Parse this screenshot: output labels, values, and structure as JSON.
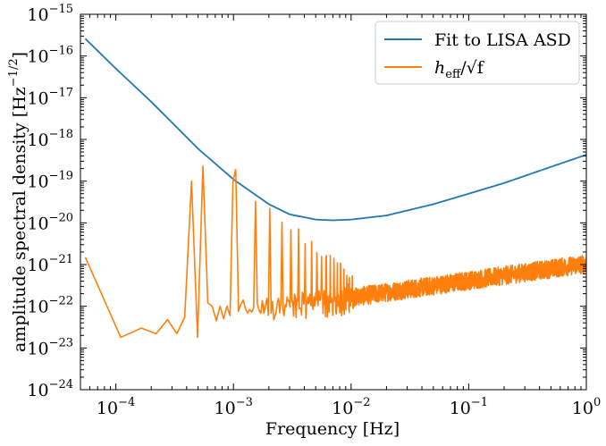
{
  "chart_data": {
    "type": "line",
    "scale": {
      "x": "log",
      "y": "log"
    },
    "xlabel": "Frequency [Hz]",
    "ylabel": "amplitude spectral density [Hz^-1/2]",
    "ylabel_prefix": "amplitude spectral density [Hz",
    "ylabel_exp": "−1/2",
    "ylabel_suffix": "]",
    "xlim": [
      5e-05,
      1.0
    ],
    "ylim": [
      1e-24,
      1e-15
    ],
    "x_ticks": [
      {
        "base": "10",
        "exp": "−4",
        "value": 0.0001
      },
      {
        "base": "10",
        "exp": "−3",
        "value": 0.001
      },
      {
        "base": "10",
        "exp": "−2",
        "value": 0.01
      },
      {
        "base": "10",
        "exp": "−1",
        "value": 0.1
      },
      {
        "base": "10",
        "exp": "0",
        "value": 1
      }
    ],
    "y_ticks": [
      {
        "base": "10",
        "exp": "−24",
        "value": 1e-24
      },
      {
        "base": "10",
        "exp": "−23",
        "value": 1e-23
      },
      {
        "base": "10",
        "exp": "−22",
        "value": 1e-22
      },
      {
        "base": "10",
        "exp": "−21",
        "value": 1e-21
      },
      {
        "base": "10",
        "exp": "−20",
        "value": 1e-20
      },
      {
        "base": "10",
        "exp": "−19",
        "value": 1e-19
      },
      {
        "base": "10",
        "exp": "−18",
        "value": 1e-18
      },
      {
        "base": "10",
        "exp": "−17",
        "value": 1e-17
      },
      {
        "base": "10",
        "exp": "−16",
        "value": 1e-16
      },
      {
        "base": "10",
        "exp": "−15",
        "value": 1e-15
      }
    ],
    "legend_position": "top-right",
    "series": [
      {
        "name": "Fit to LISA ASD",
        "color": "#1f77b4",
        "x": [
          5.5e-05,
          0.0001,
          0.0002,
          0.0005,
          0.001,
          0.002,
          0.003,
          0.005,
          0.007,
          0.01,
          0.02,
          0.05,
          0.1,
          0.2,
          0.5,
          1.0
        ],
        "y": [
          2.6e-16,
          5e-17,
          8e-18,
          6e-19,
          1.1e-19,
          2.8e-20,
          1.6e-20,
          1.2e-20,
          1.15e-20,
          1.2e-20,
          1.5e-20,
          2.8e-20,
          5e-20,
          9e-20,
          2.2e-19,
          4.3e-19
        ]
      },
      {
        "name": "h_eff/√f",
        "legend_label": "h_eff/√f",
        "legend_main": "h",
        "legend_sub": "eff",
        "legend_rest": "/√f",
        "color": "#ff7f0e",
        "x": [
          5.5e-05,
          0.00011,
          0.000165,
          0.00022,
          0.000275,
          0.00033,
          0.000385,
          0.00044,
          0.000495,
          0.00055,
          0.000605,
          0.00066,
          0.000715,
          0.00077,
          0.000825,
          0.00088,
          0.000935,
          0.00099,
          0.001045,
          0.0011
        ],
        "y": [
          1.5e-21,
          1.8e-23,
          3e-23,
          2.2e-23,
          4.8e-23,
          2.2e-23,
          5.5e-23,
          1e-19,
          1.8e-23,
          2.3e-19,
          1.2e-22,
          1e-22,
          4.5e-23,
          1e-22,
          5e-23,
          1e-22,
          6e-23,
          1e-19,
          1.9e-19,
          1.5e-22
        ],
        "peaks_note": "comb of narrow resonance peaks from ~1e-3 to ~1e-2 Hz decaying from ~1e-19 to ~1e-21, then a noisy band rising from ~1.5e-22 at 1e-2 Hz to ~1.8e-21 at 1 Hz"
      }
    ]
  }
}
